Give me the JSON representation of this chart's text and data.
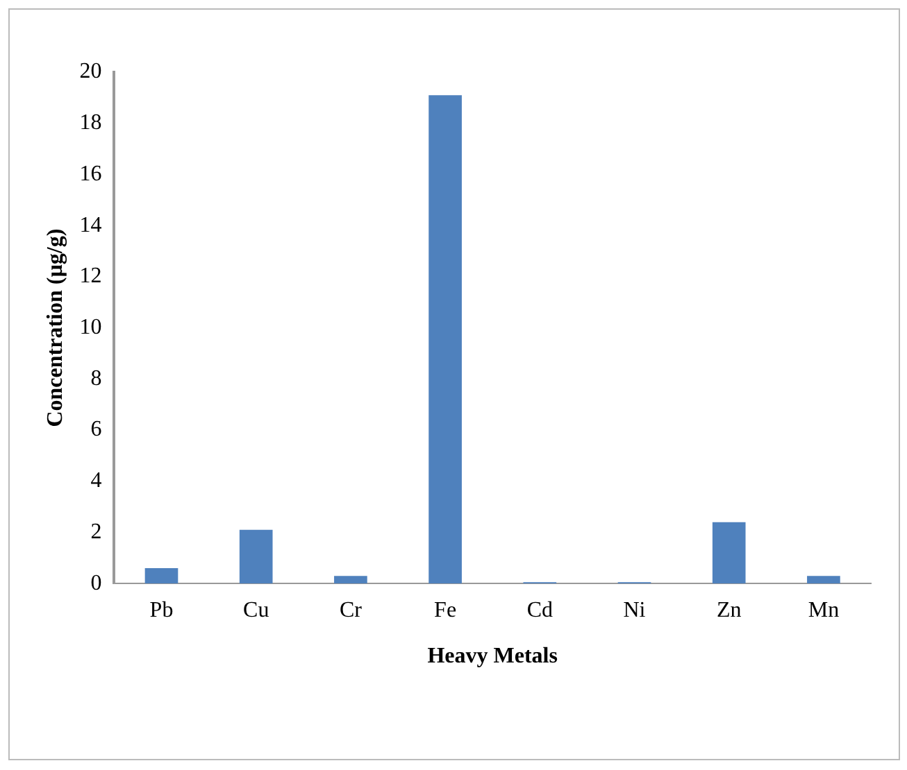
{
  "chart_data": {
    "type": "bar",
    "xlabel": "Heavy Metals",
    "ylabel": "Concentration (µg/g)",
    "categories": [
      "Pb",
      "Cu",
      "Cr",
      "Fe",
      "Cd",
      "Ni",
      "Zn",
      "Mn"
    ],
    "values": [
      0.6,
      2.1,
      0.3,
      19.1,
      0.05,
      0.05,
      2.4,
      0.3
    ],
    "color": "#4f81bd",
    "ylim": [
      0,
      20
    ],
    "yticks": [
      0,
      2,
      4,
      6,
      8,
      10,
      12,
      14,
      16,
      18,
      20
    ],
    "grid": false,
    "legend": false
  }
}
